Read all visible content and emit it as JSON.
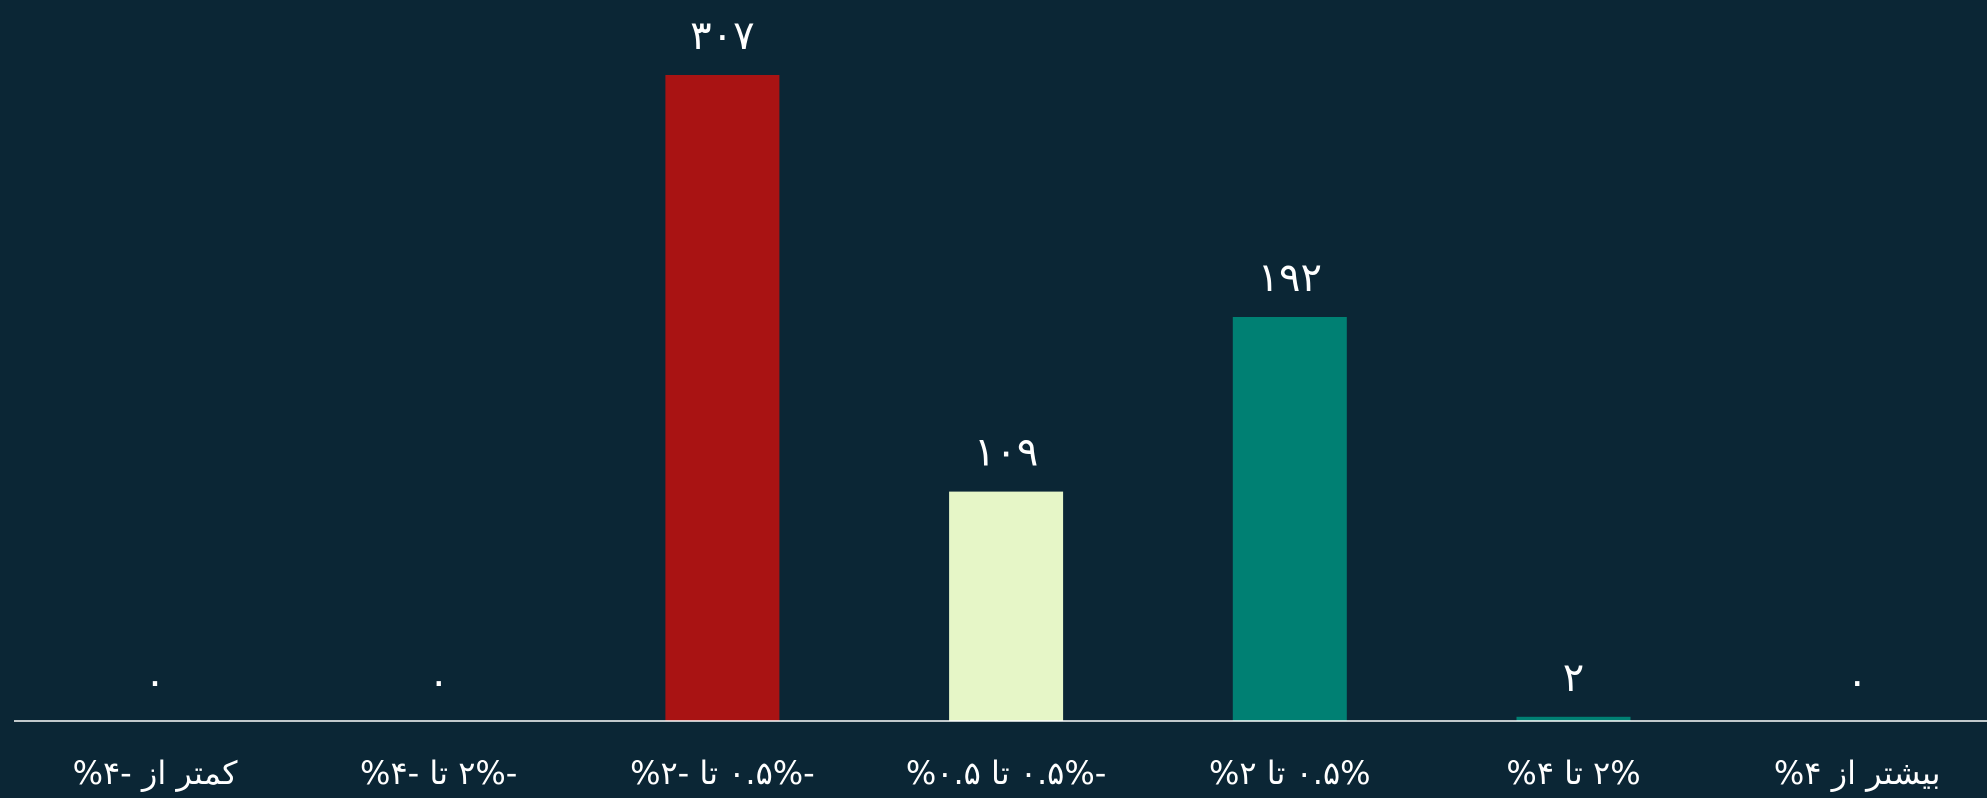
{
  "chart_data": {
    "type": "bar",
    "categories": [
      "کمتر از -۴%",
      "-۲% تا -۴%",
      "-۰.۵% تا -۲%",
      "-۰.۵% تا ۰.۵%",
      "۰.۵% تا ۲%",
      "۲% تا ۴%",
      "بیشتر از ۴%"
    ],
    "values": [
      0,
      0,
      307,
      109,
      192,
      2,
      0
    ],
    "value_labels": [
      "۰",
      "۰",
      "۳۰۷",
      "۱۰۹",
      "۱۹۲",
      "۲",
      "۰"
    ],
    "colors": [
      "#a91313",
      "#a91313",
      "#a91313",
      "#e6f6c7",
      "#008073",
      "#008073",
      "#008073"
    ],
    "ylim": [
      0,
      307
    ],
    "grid": false,
    "legend": "none",
    "background": "#0b2635",
    "axis_color": "#ffffff"
  }
}
